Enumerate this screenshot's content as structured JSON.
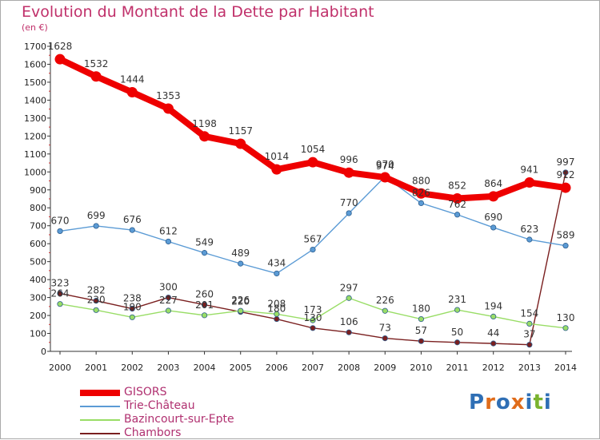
{
  "title": "Evolution du Montant de la Dette par Habitant",
  "subtitle": "(en €)",
  "logo": {
    "text": "Proxiti",
    "colors": [
      "#2f6fb5",
      "#e06c1a",
      "#2f6fb5",
      "#e06c1a",
      "#2f6fb5",
      "#7ab32e",
      "#2f6fb5"
    ]
  },
  "chart_data": {
    "type": "line",
    "x": [
      "2000",
      "2001",
      "2002",
      "2003",
      "2004",
      "2005",
      "2006",
      "2007",
      "2008",
      "2009",
      "2010",
      "2011",
      "2012",
      "2013",
      "2014"
    ],
    "ylim": [
      0,
      1700
    ],
    "yticks": [
      0,
      100,
      200,
      300,
      400,
      500,
      600,
      700,
      800,
      900,
      1000,
      1100,
      1200,
      1300,
      1400,
      1500,
      1600,
      1700
    ],
    "grid": false,
    "legend_position": "bottom-left",
    "series": [
      {
        "name": "GISORS",
        "color": "#ee0000",
        "values": [
          1628,
          1532,
          1444,
          1353,
          1198,
          1157,
          1014,
          1054,
          996,
          970,
          880,
          852,
          864,
          941,
          912
        ]
      },
      {
        "name": "Trie-Château",
        "color": "#5b9bd5",
        "values": [
          670,
          699,
          676,
          612,
          549,
          489,
          434,
          567,
          770,
          974,
          826,
          762,
          690,
          623,
          589
        ]
      },
      {
        "name": "Bazincourt-sur-Epte",
        "color": "#99dd66",
        "values": [
          264,
          230,
          190,
          227,
          201,
          226,
          208,
          173,
          297,
          226,
          180,
          231,
          194,
          154,
          130
        ]
      },
      {
        "name": "Chambors",
        "color": "#7a1f1f",
        "values": [
          323,
          282,
          238,
          300,
          260,
          220,
          180,
          130,
          106,
          73,
          57,
          50,
          44,
          37,
          997
        ]
      }
    ]
  }
}
